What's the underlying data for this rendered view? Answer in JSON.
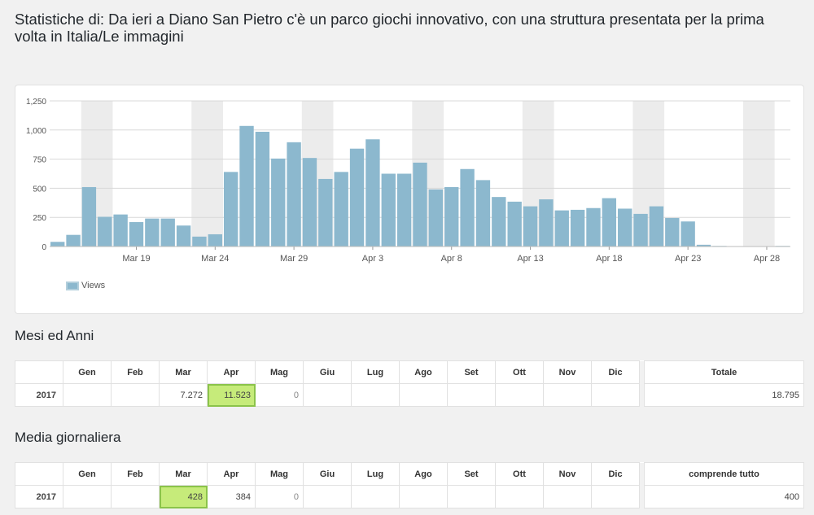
{
  "page": {
    "title": "Statistiche di: Da ieri a Diano San Pietro c'è un parco giochi innovativo, con una struttura presentata per la prima volta in Italia/Le immagini"
  },
  "colors": {
    "bar": "#8cb8ce",
    "highlight": "#c6eb7a",
    "weekend": "#ececec"
  },
  "chart_data": {
    "type": "bar",
    "series": [
      {
        "name": "Views",
        "values": [
          40,
          100,
          510,
          255,
          275,
          210,
          240,
          240,
          180,
          85,
          105,
          640,
          1035,
          985,
          755,
          895,
          760,
          580,
          640,
          840,
          920,
          625,
          625,
          720,
          490,
          510,
          665,
          570,
          425,
          385,
          345,
          405,
          310,
          315,
          330,
          415,
          325,
          280,
          345,
          245,
          215,
          15,
          5,
          3,
          2,
          3,
          5
        ]
      }
    ],
    "x_tick_labels": [
      "Mar 19",
      "Mar 24",
      "Mar 29",
      "Apr 3",
      "Apr 8",
      "Apr 13",
      "Apr 18",
      "Apr 23",
      "Apr 28"
    ],
    "y_ticks": [
      "0",
      "250",
      "500",
      "750",
      "1,000",
      "1,250"
    ],
    "ylim": [
      0,
      1250
    ],
    "grid": true,
    "legend_position": "bottom-left"
  },
  "months_section": {
    "title": "Mesi ed Anni",
    "headers": [
      "Gen",
      "Feb",
      "Mar",
      "Apr",
      "Mag",
      "Giu",
      "Lug",
      "Ago",
      "Set",
      "Ott",
      "Nov",
      "Dic"
    ],
    "total_header": "Totale",
    "rows": [
      {
        "year": "2017",
        "cells": [
          "",
          "",
          "7.272",
          "11.523",
          "0",
          "",
          "",
          "",
          "",
          "",
          "",
          ""
        ],
        "total": "18.795"
      }
    ]
  },
  "daily_section": {
    "title": "Media giornaliera",
    "headers": [
      "Gen",
      "Feb",
      "Mar",
      "Apr",
      "Mag",
      "Giu",
      "Lug",
      "Ago",
      "Set",
      "Ott",
      "Nov",
      "Dic"
    ],
    "total_header": "comprende tutto",
    "rows": [
      {
        "year": "2017",
        "cells": [
          "",
          "",
          "428",
          "384",
          "0",
          "",
          "",
          "",
          "",
          "",
          "",
          ""
        ],
        "total": "400"
      }
    ]
  }
}
